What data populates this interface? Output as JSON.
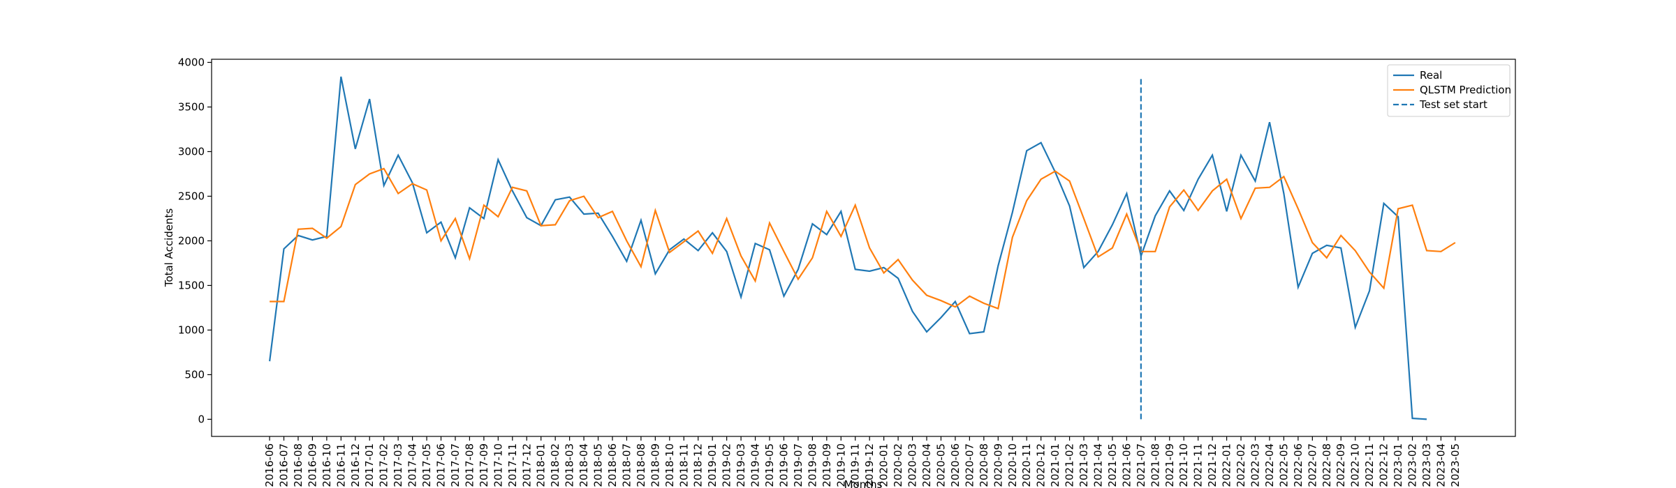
{
  "chart_data": {
    "type": "line",
    "xlabel": "Months",
    "ylabel": "Total Accidents",
    "categories": [
      "2016-06",
      "2016-07",
      "2016-08",
      "2016-09",
      "2016-10",
      "2016-11",
      "2016-12",
      "2017-01",
      "2017-02",
      "2017-03",
      "2017-04",
      "2017-05",
      "2017-06",
      "2017-07",
      "2017-08",
      "2017-09",
      "2017-10",
      "2017-11",
      "2017-12",
      "2018-01",
      "2018-02",
      "2018-03",
      "2018-04",
      "2018-05",
      "2018-06",
      "2018-07",
      "2018-08",
      "2018-09",
      "2018-10",
      "2018-11",
      "2018-12",
      "2019-01",
      "2019-02",
      "2019-03",
      "2019-04",
      "2019-05",
      "2019-06",
      "2019-07",
      "2019-08",
      "2019-09",
      "2019-10",
      "2019-11",
      "2019-12",
      "2020-01",
      "2020-02",
      "2020-03",
      "2020-04",
      "2020-05",
      "2020-06",
      "2020-07",
      "2020-08",
      "2020-09",
      "2020-10",
      "2020-11",
      "2020-12",
      "2021-01",
      "2021-02",
      "2021-03",
      "2021-04",
      "2021-05",
      "2021-06",
      "2021-07",
      "2021-08",
      "2021-09",
      "2021-10",
      "2021-11",
      "2021-12",
      "2022-01",
      "2022-02",
      "2022-03",
      "2022-04",
      "2022-05",
      "2022-06",
      "2022-07",
      "2022-08",
      "2022-09",
      "2022-10",
      "2022-11",
      "2022-12",
      "2023-01",
      "2023-02",
      "2023-03",
      "2023-04",
      "2023-05"
    ],
    "series": [
      {
        "name": "Real",
        "color": "#1f77b4",
        "values": [
          650,
          1910,
          2060,
          2010,
          2050,
          3840,
          3030,
          3590,
          2620,
          2960,
          2650,
          2090,
          2210,
          1810,
          2370,
          2250,
          2910,
          2560,
          2260,
          2170,
          2460,
          2490,
          2300,
          2310,
          2050,
          1770,
          2230,
          1630,
          1900,
          2020,
          1890,
          2090,
          1880,
          1370,
          1970,
          1900,
          1380,
          1680,
          2190,
          2070,
          2330,
          1680,
          1660,
          1700,
          1580,
          1210,
          980,
          1140,
          1320,
          960,
          980,
          1720,
          2320,
          3010,
          3100,
          2770,
          2390,
          1700,
          1880,
          2180,
          2530,
          1830,
          2280,
          2560,
          2340,
          2690,
          2960,
          2330,
          2960,
          2670,
          3330,
          2530,
          1480,
          1860,
          1950,
          1920,
          1030,
          1440,
          2420,
          2270,
          10,
          0,
          null,
          null
        ]
      },
      {
        "name": "QLSTM Prediction",
        "color": "#ff7f0e",
        "values": [
          1320,
          1320,
          2130,
          2140,
          2030,
          2160,
          2630,
          2750,
          2810,
          2530,
          2640,
          2570,
          2000,
          2250,
          1800,
          2400,
          2270,
          2600,
          2560,
          2170,
          2180,
          2450,
          2500,
          2260,
          2330,
          2000,
          1710,
          2340,
          1870,
          1990,
          2110,
          1860,
          2250,
          1830,
          1550,
          2200,
          1880,
          1570,
          1810,
          2330,
          2050,
          2400,
          1920,
          1640,
          1790,
          1560,
          1390,
          1330,
          1260,
          1380,
          1300,
          1240,
          2040,
          2450,
          2690,
          2780,
          2670,
          2250,
          1820,
          1920,
          2300,
          1880,
          1880,
          2380,
          2570,
          2340,
          2560,
          2690,
          2250,
          2590,
          2600,
          2720,
          2360,
          1980,
          1810,
          2060,
          1890,
          1650,
          1470,
          2360,
          2400,
          1890,
          1880,
          1980
        ]
      }
    ],
    "test_start": {
      "name": "Test set start",
      "x": "2021-07",
      "ymin": 0,
      "ymax": 3830,
      "color": "#1f77b4"
    },
    "ylim": [
      -192,
      4035
    ],
    "yticks": [
      0,
      500,
      1000,
      1500,
      2000,
      2500,
      3000,
      3500,
      4000
    ],
    "legend": "upper right"
  }
}
